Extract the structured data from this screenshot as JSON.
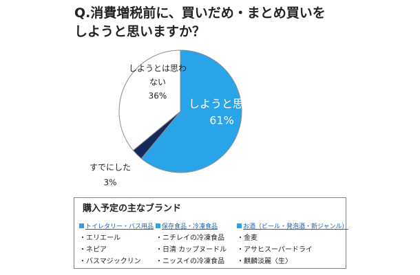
{
  "title": {
    "line1": "Q.消費増税前に、買いだめ・まとめ買いを",
    "line2": "しようと思いますか？"
  },
  "chart_data": {
    "type": "pie",
    "slices": [
      {
        "label": "しようと思う",
        "value": 61,
        "value_text": "61%",
        "color": "#2aa4e8",
        "text_color": "#ffffff"
      },
      {
        "label": "すでにした",
        "value": 3,
        "value_text": "3%",
        "color": "#152a5c",
        "text_color": "#222222"
      },
      {
        "label_lines": [
          "しようとは思わ",
          "ない"
        ],
        "value": 36,
        "value_text": "36%",
        "color": "#ffffff",
        "text_color": "#222222"
      }
    ],
    "start": "12 o'clock",
    "direction": "clockwise",
    "stroke": "#8c8c8c"
  },
  "brands": {
    "title": "購入予定の主なブランド",
    "columns": [
      {
        "heading": "トイレタリー・バス用品",
        "items": [
          "・エリエール",
          "・ネピア",
          "・バスマジックリン"
        ]
      },
      {
        "heading": "保存食品・冷凍食品",
        "items": [
          "・ニチレイの冷凍食品",
          "・日清 カップヌードル",
          "・ニッスイの冷凍食品"
        ]
      },
      {
        "heading": "お酒（ビール・発泡酒・新ジャンル）",
        "items": [
          "・金麦",
          "・アサヒスーパードライ",
          "・麒麟淡麗〈生〉"
        ]
      }
    ]
  }
}
